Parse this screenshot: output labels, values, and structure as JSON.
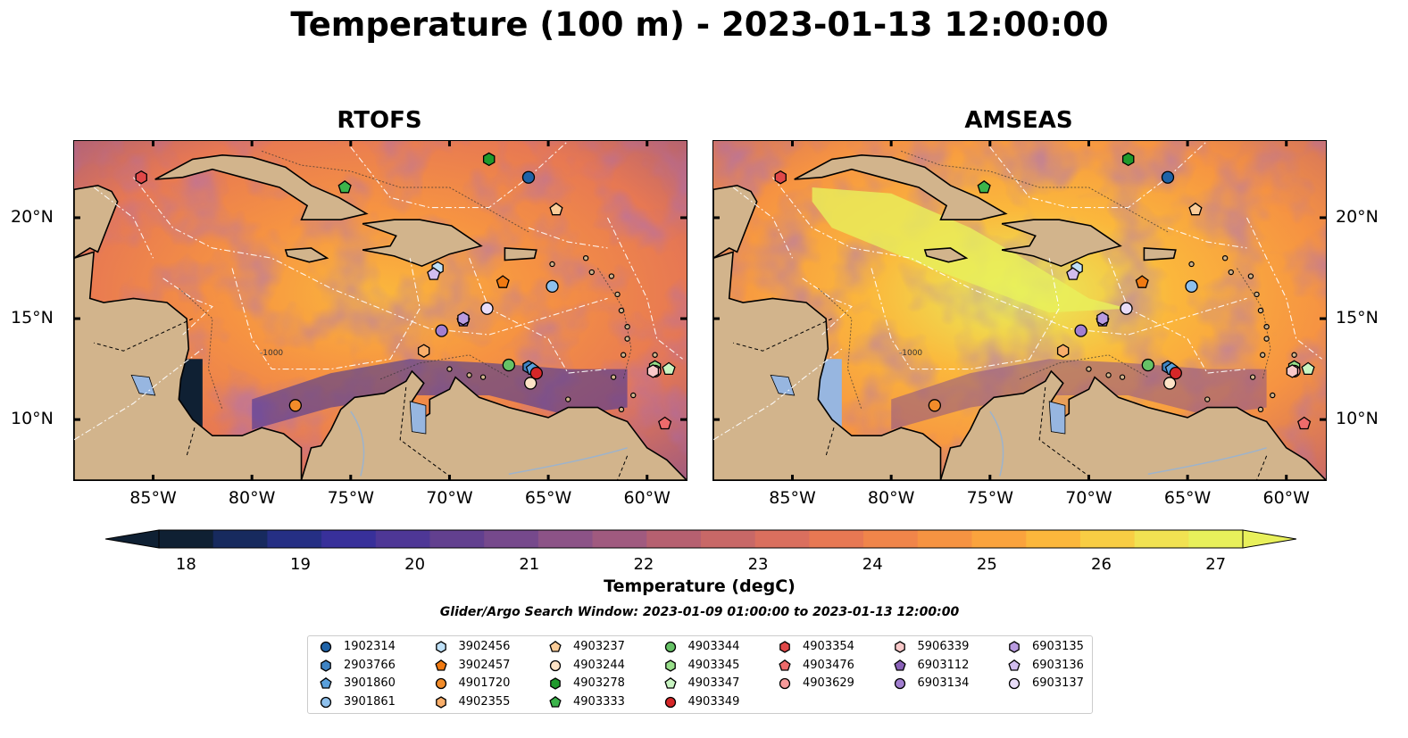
{
  "title": "Temperature (100 m) - 2023-01-13 12:00:00",
  "panels": [
    {
      "title": "RTOFS",
      "palette": "warm"
    },
    {
      "title": "AMSEAS",
      "palette": "hot"
    }
  ],
  "map": {
    "lon_range": [
      -89,
      -58
    ],
    "lat_range": [
      7,
      23.8
    ],
    "lon_ticks": [
      "85°W",
      "80°W",
      "75°W",
      "70°W",
      "65°W",
      "60°W"
    ],
    "lon_tick_values": [
      -85,
      -80,
      -75,
      -70,
      -65,
      -60
    ],
    "lat_ticks": [
      "20°N",
      "15°N",
      "10°N"
    ],
    "lat_tick_values": [
      20,
      15,
      10
    ],
    "contour_label": "-1000",
    "colors": {
      "ocean_nodata": "#97b6e0",
      "land": "#d2b48c",
      "coast": "#000000",
      "eez": "#ffffff",
      "river": "#97b6e0"
    }
  },
  "colorbar": {
    "label": "Temperature (degC)",
    "min": 18,
    "max": 27,
    "ticks": [
      "18",
      "19",
      "20",
      "21",
      "22",
      "23",
      "24",
      "25",
      "26",
      "27"
    ],
    "tick_values": [
      18,
      19,
      20,
      21,
      22,
      23,
      24,
      25,
      26,
      27
    ],
    "colors": [
      "#0f2033",
      "#172a5e",
      "#252f84",
      "#38309a",
      "#4e3796",
      "#62408f",
      "#76498c",
      "#8c5387",
      "#a05a7f",
      "#b66070",
      "#c86867",
      "#da6f5e",
      "#e77853",
      "#f0854a",
      "#f69342",
      "#faa33d",
      "#fbb73c",
      "#f8cd44",
      "#f1e252",
      "#e8f05b"
    ],
    "under_color": "#0f2033",
    "over_color": "#e8f05b"
  },
  "search_window": "Glider/Argo Search Window: 2023-01-09 01:00:00 to 2023-01-13 12:00:00",
  "legend": {
    "columns": [
      [
        {
          "id": "1902314",
          "color": "#1f63a8",
          "marker": "circle"
        },
        {
          "id": "2903766",
          "color": "#3f84c4",
          "marker": "hexagon"
        },
        {
          "id": "3901860",
          "color": "#5aa0dc",
          "marker": "pentagon"
        },
        {
          "id": "3901861",
          "color": "#8ec0ec",
          "marker": "circle"
        }
      ],
      [
        {
          "id": "3902456",
          "color": "#bfe1f8",
          "marker": "hexagon"
        },
        {
          "id": "3902457",
          "color": "#f07a12",
          "marker": "pentagon"
        },
        {
          "id": "4901720",
          "color": "#f28c2a",
          "marker": "circle"
        },
        {
          "id": "4902355",
          "color": "#f9ae6a",
          "marker": "hexagon"
        }
      ],
      [
        {
          "id": "4903237",
          "color": "#fbcc98",
          "marker": "pentagon"
        },
        {
          "id": "4903244",
          "color": "#fde3c6",
          "marker": "circle"
        },
        {
          "id": "4903278",
          "color": "#1f9a2c",
          "marker": "hexagon"
        },
        {
          "id": "4903333",
          "color": "#3cb44b",
          "marker": "pentagon"
        }
      ],
      [
        {
          "id": "4903344",
          "color": "#66c266",
          "marker": "circle"
        },
        {
          "id": "4903345",
          "color": "#98df8a",
          "marker": "hexagon"
        },
        {
          "id": "4903347",
          "color": "#c9f5c2",
          "marker": "pentagon"
        },
        {
          "id": "4903349",
          "color": "#d62728",
          "marker": "circle"
        }
      ],
      [
        {
          "id": "4903354",
          "color": "#e04848",
          "marker": "hexagon"
        },
        {
          "id": "4903476",
          "color": "#ee6b6b",
          "marker": "pentagon"
        },
        {
          "id": "4903629",
          "color": "#f59a9a",
          "marker": "circle"
        }
      ],
      [
        {
          "id": "5906339",
          "color": "#f9c9c9",
          "marker": "hexagon"
        },
        {
          "id": "6903112",
          "color": "#8a62b8",
          "marker": "pentagon"
        },
        {
          "id": "6903134",
          "color": "#a27fd0",
          "marker": "circle"
        }
      ],
      [
        {
          "id": "6903135",
          "color": "#b99be0",
          "marker": "hexagon"
        },
        {
          "id": "6903136",
          "color": "#d2bdee",
          "marker": "pentagon"
        },
        {
          "id": "6903137",
          "color": "#e8dcf8",
          "marker": "circle"
        }
      ]
    ]
  },
  "floats": [
    {
      "id": "1902314",
      "lon": -66.0,
      "lat": 22.0
    },
    {
      "id": "2903766",
      "lon": -66.0,
      "lat": 12.6
    },
    {
      "id": "3901860",
      "lon": -65.8,
      "lat": 12.5
    },
    {
      "id": "3901861",
      "lon": -64.8,
      "lat": 16.6
    },
    {
      "id": "3902456",
      "lon": -70.6,
      "lat": 17.5
    },
    {
      "id": "3902457",
      "lon": -67.3,
      "lat": 16.8
    },
    {
      "id": "4901720",
      "lon": -77.8,
      "lat": 10.7
    },
    {
      "id": "4902355",
      "lon": -71.3,
      "lat": 13.4
    },
    {
      "id": "4903237",
      "lon": -64.6,
      "lat": 20.4
    },
    {
      "id": "4903244",
      "lon": -65.9,
      "lat": 11.8
    },
    {
      "id": "4903278",
      "lon": -68.0,
      "lat": 22.9
    },
    {
      "id": "4903333",
      "lon": -75.3,
      "lat": 21.5
    },
    {
      "id": "4903344",
      "lon": -67.0,
      "lat": 12.7
    },
    {
      "id": "4903345",
      "lon": -59.6,
      "lat": 12.6
    },
    {
      "id": "4903347",
      "lon": -58.9,
      "lat": 12.5
    },
    {
      "id": "4903349",
      "lon": -65.6,
      "lat": 12.3
    },
    {
      "id": "4903354",
      "lon": -85.6,
      "lat": 22.0
    },
    {
      "id": "4903476",
      "lon": -59.1,
      "lat": 9.8
    },
    {
      "id": "4903629",
      "lon": -59.6,
      "lat": 12.4
    },
    {
      "id": "5906339",
      "lon": -59.7,
      "lat": 12.4
    },
    {
      "id": "6903112",
      "lon": -69.3,
      "lat": 14.9
    },
    {
      "id": "6903134",
      "lon": -70.4,
      "lat": 14.4
    },
    {
      "id": "6903135",
      "lon": -69.3,
      "lat": 15.0
    },
    {
      "id": "6903136",
      "lon": -70.8,
      "lat": 17.2
    },
    {
      "id": "6903137",
      "lon": -68.1,
      "lat": 15.5
    }
  ]
}
